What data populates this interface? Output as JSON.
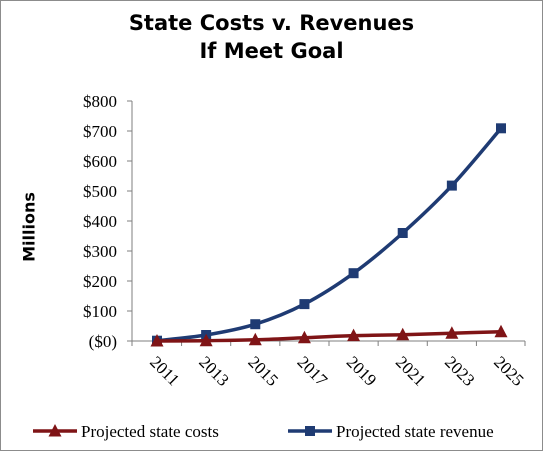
{
  "chart_data": {
    "type": "line",
    "title": [
      "State Costs v. Revenues",
      "If Meet Goal"
    ],
    "ylabel": "Millions",
    "xlabel": "",
    "categories": [
      "2011",
      "2013",
      "2015",
      "2017",
      "2019",
      "2021",
      "2023",
      "2025"
    ],
    "y_ticks": [
      "($0)",
      "$100",
      "$200",
      "$300",
      "$400",
      "$500",
      "$600",
      "$700",
      "$800"
    ],
    "ylim": [
      0,
      800
    ],
    "grid": false,
    "legend_position": "bottom",
    "series": [
      {
        "name": "Projected state costs",
        "color": "#7f1416",
        "marker": "triangle",
        "values": [
          0,
          1,
          4,
          11,
          18,
          21,
          26,
          31
        ]
      },
      {
        "name": "Projected state revenue",
        "color": "#1f3b73",
        "marker": "square",
        "values": [
          1,
          20,
          56,
          123,
          226,
          360,
          518,
          709
        ]
      }
    ]
  }
}
